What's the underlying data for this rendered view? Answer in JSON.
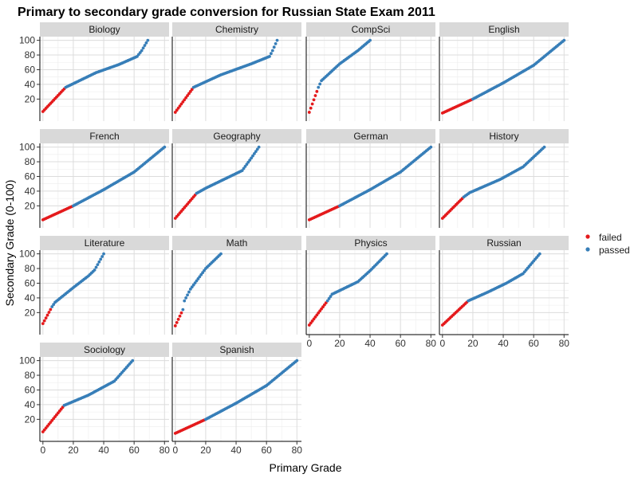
{
  "chart_data": {
    "type": "scatter",
    "title": "Primary to secondary grade conversion for Russian State Exam 2011",
    "xlabel": "Primary Grade",
    "ylabel": "Secondary Grade (0-100)",
    "grid": true,
    "legend_position": "right",
    "series": [
      {
        "name": "failed",
        "color": "#e41a1c"
      },
      {
        "name": "passed",
        "color": "#377eb8"
      }
    ],
    "panels": [
      {
        "title": "Biology",
        "max_primary": 69,
        "threshold": 15,
        "points": [
          [
            0,
            3
          ],
          [
            15,
            36
          ],
          [
            35,
            56
          ],
          [
            50,
            67
          ],
          [
            62,
            78
          ],
          [
            65,
            86
          ],
          [
            69,
            100
          ]
        ]
      },
      {
        "title": "Chemistry",
        "max_primary": 67,
        "threshold": 12,
        "points": [
          [
            0,
            2
          ],
          [
            12,
            36
          ],
          [
            30,
            53
          ],
          [
            50,
            68
          ],
          [
            62,
            78
          ],
          [
            64,
            86
          ],
          [
            67,
            100
          ]
        ]
      },
      {
        "title": "CompSci",
        "max_primary": 40,
        "threshold": 6,
        "points": [
          [
            0,
            2
          ],
          [
            6,
            36
          ],
          [
            8,
            45
          ],
          [
            20,
            68
          ],
          [
            32,
            86
          ],
          [
            40,
            100
          ]
        ]
      },
      {
        "title": "English",
        "max_primary": 80,
        "threshold": 20,
        "points": [
          [
            0,
            1
          ],
          [
            20,
            20
          ],
          [
            40,
            42
          ],
          [
            60,
            66
          ],
          [
            80,
            100
          ]
        ]
      },
      {
        "title": "French",
        "max_primary": 80,
        "threshold": 20,
        "points": [
          [
            0,
            1
          ],
          [
            20,
            20
          ],
          [
            40,
            42
          ],
          [
            60,
            66
          ],
          [
            80,
            100
          ]
        ]
      },
      {
        "title": "Geography",
        "max_primary": 55,
        "threshold": 14,
        "points": [
          [
            0,
            3
          ],
          [
            14,
            37
          ],
          [
            20,
            44
          ],
          [
            44,
            68
          ],
          [
            50,
            85
          ],
          [
            55,
            100
          ]
        ]
      },
      {
        "title": "German",
        "max_primary": 80,
        "threshold": 20,
        "points": [
          [
            0,
            1
          ],
          [
            20,
            20
          ],
          [
            40,
            42
          ],
          [
            60,
            66
          ],
          [
            80,
            100
          ]
        ]
      },
      {
        "title": "History",
        "max_primary": 67,
        "threshold": 14,
        "points": [
          [
            0,
            3
          ],
          [
            14,
            32
          ],
          [
            18,
            38
          ],
          [
            38,
            56
          ],
          [
            53,
            73
          ],
          [
            67,
            100
          ]
        ]
      },
      {
        "title": "Literature",
        "max_primary": 40,
        "threshold": 6,
        "points": [
          [
            0,
            5
          ],
          [
            6,
            28
          ],
          [
            8,
            34
          ],
          [
            20,
            54
          ],
          [
            30,
            70
          ],
          [
            34,
            78
          ],
          [
            37,
            89
          ],
          [
            40,
            100
          ]
        ]
      },
      {
        "title": "Math",
        "max_primary": 30,
        "threshold": 5,
        "points": [
          [
            0,
            2
          ],
          [
            5,
            24
          ],
          [
            6,
            36
          ],
          [
            10,
            52
          ],
          [
            15,
            66
          ],
          [
            20,
            80
          ],
          [
            25,
            90
          ],
          [
            30,
            100
          ]
        ]
      },
      {
        "title": "Physics",
        "max_primary": 51,
        "threshold": 12,
        "points": [
          [
            0,
            3
          ],
          [
            12,
            36
          ],
          [
            15,
            45
          ],
          [
            32,
            62
          ],
          [
            40,
            77
          ],
          [
            51,
            100
          ]
        ]
      },
      {
        "title": "Russian",
        "max_primary": 64,
        "threshold": 17,
        "points": [
          [
            0,
            3
          ],
          [
            17,
            36
          ],
          [
            30,
            48
          ],
          [
            42,
            60
          ],
          [
            53,
            73
          ],
          [
            64,
            100
          ]
        ]
      },
      {
        "title": "Sociology",
        "max_primary": 59,
        "threshold": 14,
        "points": [
          [
            0,
            3
          ],
          [
            14,
            39
          ],
          [
            30,
            53
          ],
          [
            47,
            72
          ],
          [
            59,
            100
          ]
        ]
      },
      {
        "title": "Spanish",
        "max_primary": 80,
        "threshold": 20,
        "points": [
          [
            0,
            1
          ],
          [
            20,
            20
          ],
          [
            40,
            42
          ],
          [
            60,
            66
          ],
          [
            80,
            100
          ]
        ]
      }
    ],
    "x_ticks": [
      "0",
      "20",
      "40",
      "60",
      "80"
    ],
    "y_ticks": [
      "20",
      "40",
      "60",
      "80",
      "100"
    ],
    "xlim": [
      -2,
      83
    ],
    "ylim": [
      -10,
      105
    ]
  }
}
